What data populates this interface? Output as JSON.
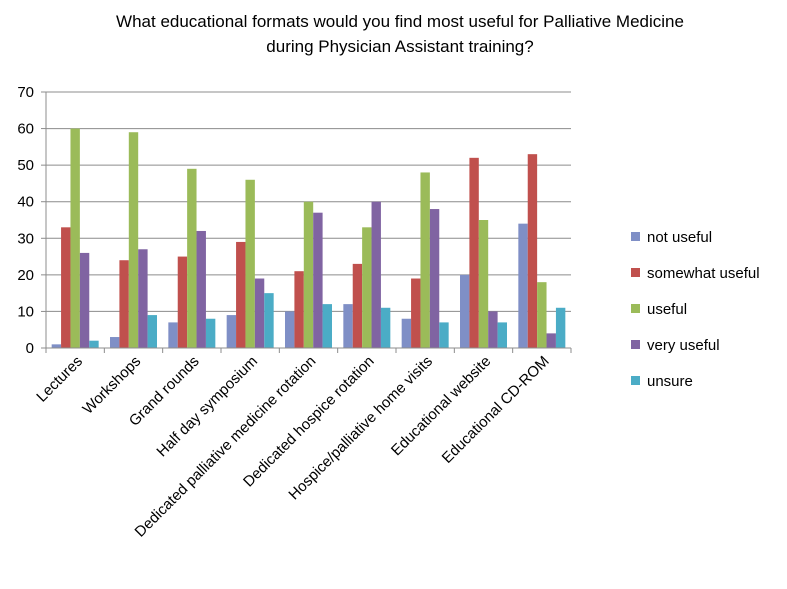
{
  "chart_data": {
    "type": "bar",
    "title_lines": [
      "What educational formats would you find most useful for  Palliative Medicine",
      "during Physician Assistant training?"
    ],
    "xlabel": "",
    "ylabel": "",
    "ylim": [
      0,
      70
    ],
    "yticks": [
      0,
      10,
      20,
      30,
      40,
      50,
      60,
      70
    ],
    "grid": true,
    "legend_position": "right",
    "categories": [
      "Lectures",
      "Workshops",
      "Grand rounds",
      "Half day symposium",
      "Dedicated palliative medicine rotation",
      "Dedicated hospice rotation",
      "Hospice/palliative home visits",
      "Educational website",
      "Educational CD-ROM"
    ],
    "series": [
      {
        "name": "not useful",
        "color": "#7F8FC6",
        "values": [
          1,
          3,
          7,
          9,
          10,
          12,
          8,
          20,
          34
        ]
      },
      {
        "name": "somewhat useful",
        "color": "#C0504D",
        "values": [
          33,
          24,
          25,
          29,
          21,
          23,
          19,
          52,
          53
        ]
      },
      {
        "name": "useful",
        "color": "#9BBB59",
        "values": [
          60,
          59,
          49,
          46,
          40,
          33,
          48,
          35,
          18
        ]
      },
      {
        "name": "very useful",
        "color": "#8064A2",
        "values": [
          26,
          27,
          32,
          19,
          37,
          40,
          38,
          10,
          4
        ]
      },
      {
        "name": "unsure",
        "color": "#4BACC6",
        "values": [
          2,
          9,
          8,
          15,
          12,
          11,
          7,
          7,
          11
        ]
      }
    ]
  }
}
